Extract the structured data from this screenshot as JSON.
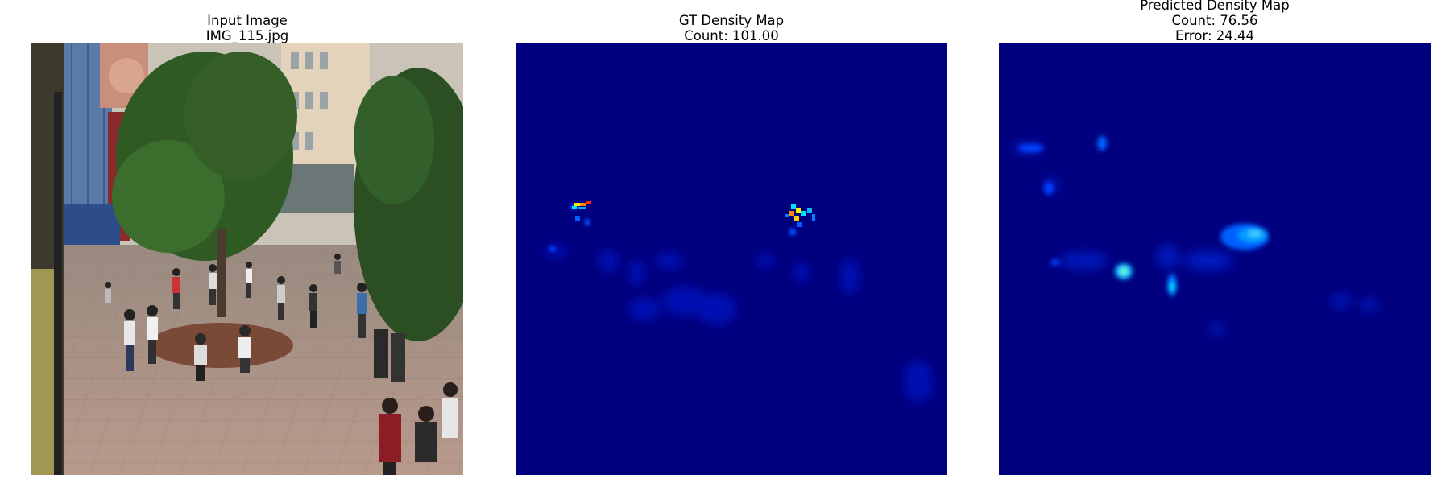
{
  "panels": [
    {
      "id": "input",
      "title_lines": [
        "Input Image",
        "IMG_115.jpg"
      ]
    },
    {
      "id": "gt",
      "title_lines": [
        "GT Density Map",
        "Count: 101.00"
      ]
    },
    {
      "id": "pred",
      "title_lines": [
        "Predicted Density Map",
        "Count: 76.56",
        "Error: 24.44"
      ]
    }
  ],
  "colors": {
    "background": "#ffffff",
    "density_low": "#00007f",
    "density_mid": "#0040ff",
    "density_high_cyan": "#00e5ff",
    "density_peak_yellow": "#ffee00",
    "density_peak_red": "#ff3300"
  }
}
